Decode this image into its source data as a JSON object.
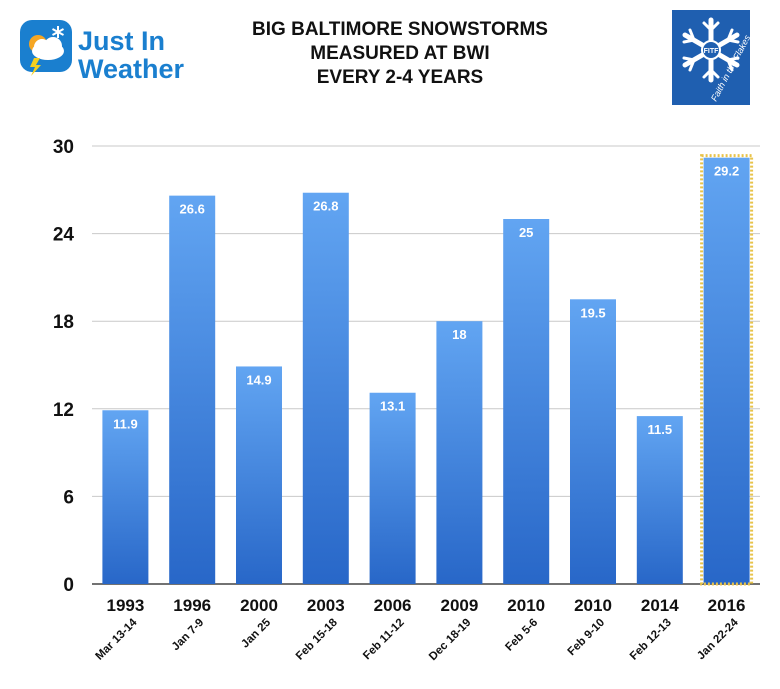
{
  "logo": {
    "line1": "Just In",
    "line2": "Weather"
  },
  "badge": {
    "text": "Faith in the Flakes",
    "center_text": "FITF",
    "bg_color": "#1f5fb0"
  },
  "chart_data": {
    "type": "bar",
    "title_lines": [
      "BIG BALTIMORE SNOWSTORMS",
      "MEASURED AT BWI",
      "EVERY 2-4 YEARS"
    ],
    "categories": [
      "1993",
      "1996",
      "2000",
      "2003",
      "2006",
      "2009",
      "2010",
      "2010",
      "2014",
      "2016"
    ],
    "dates": [
      "Mar 13-14",
      "Jan 7-9",
      "Jan 25",
      "Feb 15-18",
      "Feb 11-12",
      "Dec 18-19",
      "Feb 5-6",
      "Feb 9-10",
      "Feb 12-13",
      "Jan 22-24"
    ],
    "values": [
      11.9,
      26.6,
      14.9,
      26.8,
      13.1,
      18,
      25,
      19.5,
      11.5,
      29.2
    ],
    "value_labels": [
      "11.9",
      "26.6",
      "14.9",
      "26.8",
      "13.1",
      "18",
      "25",
      "19.5",
      "11.5",
      "29.2"
    ],
    "ylim": [
      0,
      30
    ],
    "yticks": [
      0,
      6,
      12,
      18,
      24,
      30
    ],
    "xlabel": "",
    "ylabel": "",
    "grid": true,
    "highlight_index": 9,
    "bar_color_top": "#62a5f2",
    "bar_color_bottom": "#2867c8",
    "highlight_border": "#e8c34a"
  }
}
